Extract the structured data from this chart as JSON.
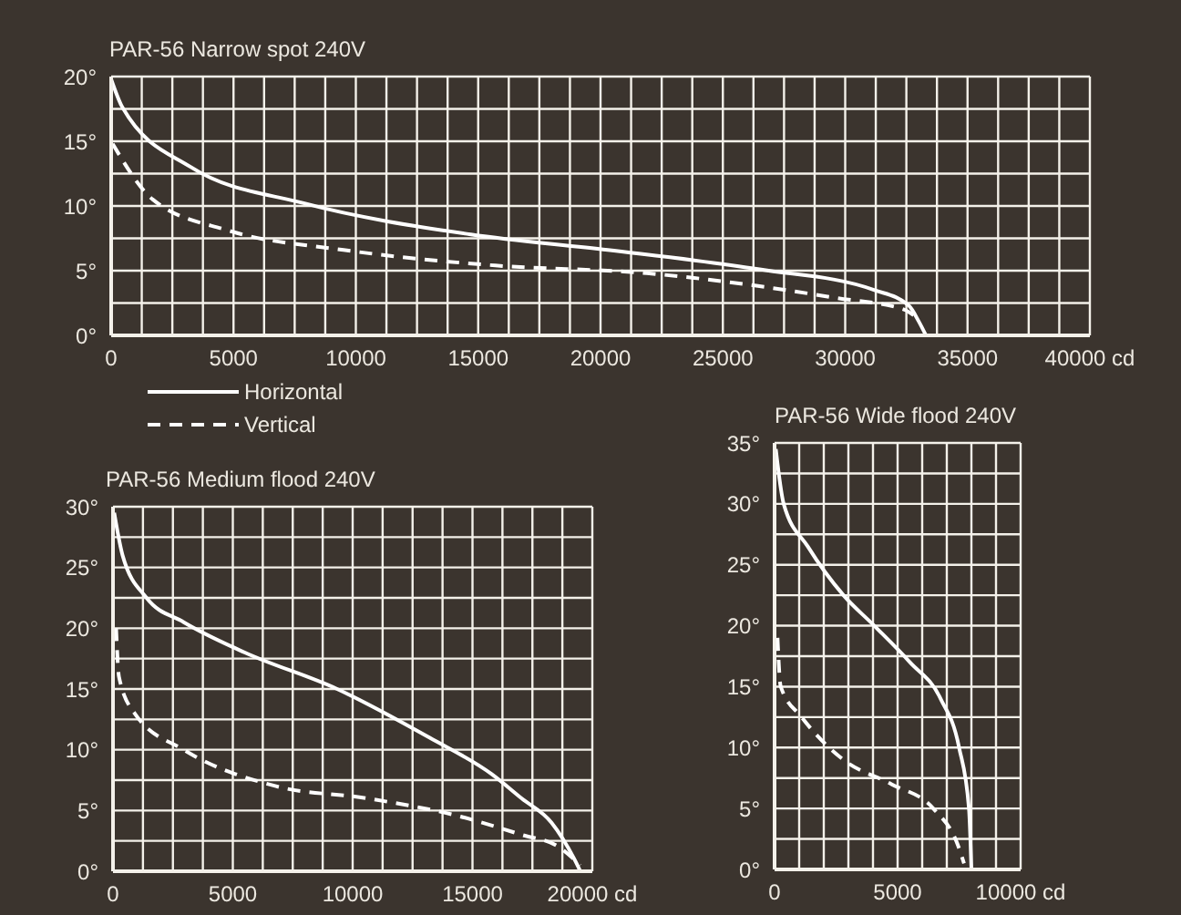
{
  "chart_data": [
    {
      "type": "line",
      "title": "PAR-56 Narrow spot 240V",
      "xlim": [
        0,
        40000
      ],
      "ylim": [
        0,
        20
      ],
      "grid": true,
      "legend": "bottom left",
      "marker": "none",
      "xticks": [
        0,
        {
          "value": 1250,
          "label": null
        },
        {
          "value": 2500,
          "label": null
        },
        {
          "value": 3750,
          "label": null
        },
        5000,
        {
          "value": 6250,
          "label": null
        },
        {
          "value": 7500,
          "label": null
        },
        {
          "value": 8750,
          "label": null
        },
        10000,
        {
          "value": 11250,
          "label": null
        },
        {
          "value": 12500,
          "label": null
        },
        {
          "value": 13750,
          "label": null
        },
        15000,
        {
          "value": 16250,
          "label": null
        },
        {
          "value": 17500,
          "label": null
        },
        {
          "value": 18750,
          "label": null
        },
        20000,
        {
          "value": 21250,
          "label": null
        },
        {
          "value": 22500,
          "label": null
        },
        {
          "value": 23750,
          "label": null
        },
        25000,
        {
          "value": 26250,
          "label": null
        },
        {
          "value": 27500,
          "label": null
        },
        {
          "value": 28750,
          "label": null
        },
        30000,
        {
          "value": 31250,
          "label": null
        },
        {
          "value": 32500,
          "label": null
        },
        {
          "value": 33750,
          "label": null
        },
        35000,
        {
          "value": 36250,
          "label": null
        },
        {
          "value": 37500,
          "label": null
        },
        {
          "value": 38750,
          "label": null
        },
        {
          "value": 40000,
          "label": "40000 cd"
        }
      ],
      "yticks": [
        {
          "value": 0,
          "label": "0°"
        },
        {
          "value": 2.5,
          "label": null
        },
        {
          "value": 5,
          "label": "5°"
        },
        {
          "value": 7.5,
          "label": null
        },
        {
          "value": 10,
          "label": "10°"
        },
        {
          "value": 12.5,
          "label": null
        },
        {
          "value": 15,
          "label": "15°"
        },
        {
          "value": 17.5,
          "label": null
        },
        {
          "value": 20,
          "label": "20°"
        }
      ],
      "series": [
        {
          "name": "Horizontal",
          "color": "#ffffff",
          "line_style": "solid",
          "x": [
            0,
            465,
            3260,
            7900,
            14700,
            20300,
            26500,
            31200,
            32600,
            33000,
            33300
          ],
          "values": [
            19.8,
            17.6,
            13,
            10.2,
            7.8,
            6.6,
            5.1,
            3.5,
            2.3,
            1.1,
            0
          ]
        },
        {
          "name": "Vertical",
          "color": "#ffffff",
          "line_style": "dashed",
          "x": [
            60,
            1700,
            4800,
            9500,
            15700,
            21900,
            26500,
            29600,
            32400,
            32900
          ],
          "values": [
            14.8,
            10.5,
            8.1,
            6.6,
            5.4,
            4.8,
            3.8,
            2.9,
            2,
            1.4
          ]
        }
      ]
    },
    {
      "type": "line",
      "title": "PAR-56 Medium flood 240V",
      "xlim": [
        0,
        20000
      ],
      "ylim": [
        0,
        30
      ],
      "grid": true,
      "marker": "none",
      "xticks": [
        0,
        {
          "value": 1250,
          "label": null
        },
        {
          "value": 2500,
          "label": null
        },
        {
          "value": 3750,
          "label": null
        },
        5000,
        {
          "value": 6250,
          "label": null
        },
        {
          "value": 7500,
          "label": null
        },
        {
          "value": 8750,
          "label": null
        },
        10000,
        {
          "value": 11250,
          "label": null
        },
        {
          "value": 12500,
          "label": null
        },
        {
          "value": 13750,
          "label": null
        },
        15000,
        {
          "value": 16250,
          "label": null
        },
        {
          "value": 17500,
          "label": null
        },
        {
          "value": 18750,
          "label": null
        },
        {
          "value": 20000,
          "label": "20000 cd"
        }
      ],
      "yticks": [
        {
          "value": 0,
          "label": "0°"
        },
        {
          "value": 2.5,
          "label": null
        },
        {
          "value": 5,
          "label": "5°"
        },
        {
          "value": 7.5,
          "label": null
        },
        {
          "value": 10,
          "label": "10°"
        },
        {
          "value": 12.5,
          "label": null
        },
        {
          "value": 15,
          "label": "15°"
        },
        {
          "value": 17.5,
          "label": null
        },
        {
          "value": 20,
          "label": "20°"
        },
        {
          "value": 22.5,
          "label": null
        },
        {
          "value": 25,
          "label": "25°"
        },
        {
          "value": 27.5,
          "label": null
        },
        {
          "value": 30,
          "label": "30°"
        }
      ],
      "series": [
        {
          "color": "#ffffff",
          "line_style": "solid",
          "x": [
            50,
            400,
            1400,
            2950,
            5500,
            9350,
            13200,
            15800,
            17050,
            18300,
            19250,
            19500
          ],
          "values": [
            29.5,
            26,
            22.5,
            20.5,
            18,
            15,
            11,
            8,
            6,
            4,
            1,
            0
          ]
        },
        {
          "color": "#ffffff",
          "line_style": "dashed",
          "x": [
            130,
            250,
            900,
            2950,
            6800,
            10600,
            14500,
            17050,
            18600,
            19500
          ],
          "values": [
            20,
            16,
            13,
            10,
            7,
            6,
            4.5,
            3,
            2,
            0.5
          ]
        }
      ]
    },
    {
      "type": "line",
      "title": "PAR-56 Wide flood 240V",
      "xlim": [
        0,
        10000
      ],
      "ylim": [
        0,
        35
      ],
      "grid": true,
      "marker": "none",
      "xticks": [
        0,
        {
          "value": 1000,
          "label": null
        },
        {
          "value": 2000,
          "label": null
        },
        {
          "value": 3000,
          "label": null
        },
        {
          "value": 4000,
          "label": null
        },
        5000,
        {
          "value": 6000,
          "label": null
        },
        {
          "value": 7000,
          "label": null
        },
        {
          "value": 8000,
          "label": null
        },
        {
          "value": 9000,
          "label": null
        },
        {
          "value": 10000,
          "label": "10000 cd"
        }
      ],
      "yticks": [
        {
          "value": 0,
          "label": "0°"
        },
        {
          "value": 2.5,
          "label": null
        },
        {
          "value": 5,
          "label": "5°"
        },
        {
          "value": 7.5,
          "label": null
        },
        {
          "value": 10,
          "label": "10°"
        },
        {
          "value": 12.5,
          "label": null
        },
        {
          "value": 15,
          "label": "15°"
        },
        {
          "value": 17.5,
          "label": null
        },
        {
          "value": 20,
          "label": "20°"
        },
        {
          "value": 22.5,
          "label": null
        },
        {
          "value": 25,
          "label": "25°"
        },
        {
          "value": 27.5,
          "label": null
        },
        {
          "value": 30,
          "label": "30°"
        },
        {
          "value": 32.5,
          "label": null
        },
        {
          "value": 35,
          "label": "35°"
        }
      ],
      "series": [
        {
          "color": "#ffffff",
          "line_style": "solid",
          "x": [
            50,
            370,
            1350,
            2800,
            4050,
            5500,
            6750,
            7500,
            7900,
            8000
          ],
          "values": [
            34.5,
            30,
            26.5,
            22.5,
            20,
            17,
            14,
            10,
            5,
            0
          ]
        },
        {
          "color": "#ffffff",
          "line_style": "dashed",
          "x": [
            120,
            250,
            1100,
            2800,
            4750,
            6450,
            7450,
            7700
          ],
          "values": [
            19,
            15,
            12.5,
            9,
            7,
            5,
            2,
            0.5
          ]
        }
      ]
    }
  ]
}
